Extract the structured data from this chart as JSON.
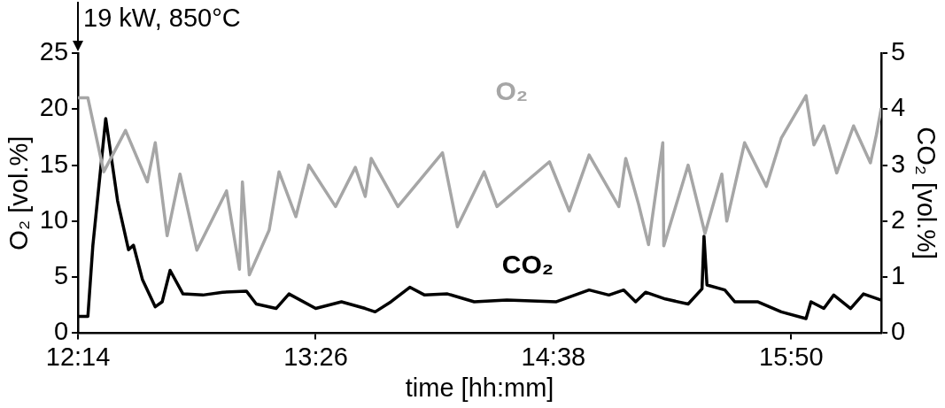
{
  "chart_data": {
    "type": "line",
    "xlabel": "time [hh:mm]",
    "ylabel": "O₂ [vol.%]",
    "y2label": "CO₂ [vol.%]",
    "annotations": [
      "19 kW, 850°C"
    ],
    "xlim": [
      12.233,
      16.288
    ],
    "xticks": [
      {
        "value": 12.233,
        "label": "12:14"
      },
      {
        "value": 13.433,
        "label": "13:26"
      },
      {
        "value": 14.633,
        "label": "14:38"
      },
      {
        "value": 15.833,
        "label": "15:50"
      }
    ],
    "ylim": [
      0,
      25
    ],
    "yticks": [
      0,
      5,
      10,
      15,
      20,
      25
    ],
    "y2lim": [
      0,
      5
    ],
    "y2ticks": [
      0,
      1,
      2,
      3,
      4,
      5
    ],
    "series": [
      {
        "name": "O₂",
        "color": "#a6a6a6",
        "x": [
          12.233,
          12.283,
          12.363,
          12.473,
          12.583,
          12.623,
          12.683,
          12.748,
          12.833,
          12.983,
          13.048,
          13.063,
          13.098,
          13.198,
          13.248,
          13.333,
          13.398,
          13.533,
          13.633,
          13.683,
          13.713,
          13.848,
          14.073,
          14.148,
          14.283,
          14.348,
          14.613,
          14.713,
          14.813,
          14.963,
          14.998,
          15.063,
          15.113,
          15.185,
          15.19,
          15.313,
          15.398,
          15.483,
          15.508,
          15.598,
          15.708,
          15.783,
          15.908,
          15.948,
          15.998,
          16.063,
          16.148,
          16.233,
          16.263,
          16.288
        ],
        "values": [
          21,
          21,
          14.4,
          18.1,
          13.5,
          17,
          8.7,
          14.2,
          7.4,
          12.7,
          5.7,
          13.5,
          5.2,
          9.2,
          14.4,
          10.4,
          15,
          11.3,
          14.8,
          12.2,
          15.6,
          11.3,
          16.1,
          9.5,
          14.4,
          11.3,
          15.3,
          10.9,
          15.9,
          11.3,
          15.6,
          11.5,
          7.9,
          17,
          7.8,
          15,
          8.9,
          14.2,
          10,
          17,
          13.1,
          17.4,
          21.2,
          16.8,
          18.5,
          14.3,
          18.5,
          15.2,
          17.7,
          20.1
        ]
      },
      {
        "name": "CO₂",
        "color": "#000000",
        "axis": "y2",
        "x": [
          12.233,
          12.283,
          12.308,
          12.373,
          12.433,
          12.488,
          12.513,
          12.558,
          12.623,
          12.658,
          12.698,
          12.763,
          12.863,
          12.963,
          13.083,
          13.133,
          13.233,
          13.298,
          13.433,
          13.563,
          13.683,
          13.733,
          13.813,
          13.908,
          13.983,
          14.098,
          14.233,
          14.398,
          14.648,
          14.813,
          14.913,
          14.988,
          15.048,
          15.098,
          15.198,
          15.313,
          15.383,
          15.393,
          15.408,
          15.498,
          15.548,
          15.663,
          15.783,
          15.908,
          15.933,
          15.998,
          16.048,
          16.133,
          16.198,
          16.288
        ],
        "values": [
          0.3,
          0.3,
          1.56,
          3.83,
          2.36,
          1.49,
          1.57,
          0.96,
          0.47,
          0.56,
          1.12,
          0.7,
          0.68,
          0.73,
          0.75,
          0.52,
          0.44,
          0.7,
          0.44,
          0.56,
          0.44,
          0.38,
          0.56,
          0.82,
          0.68,
          0.7,
          0.56,
          0.59,
          0.56,
          0.77,
          0.68,
          0.77,
          0.56,
          0.73,
          0.61,
          0.52,
          0.79,
          1.73,
          0.86,
          0.77,
          0.56,
          0.56,
          0.38,
          0.26,
          0.56,
          0.44,
          0.68,
          0.44,
          0.7,
          0.59
        ]
      }
    ]
  }
}
